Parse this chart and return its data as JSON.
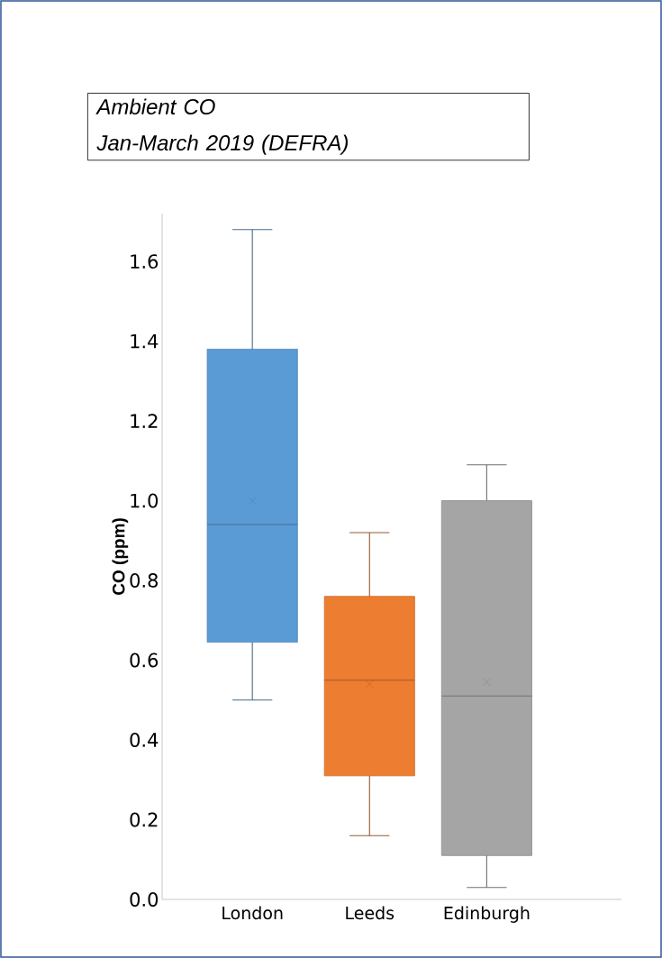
{
  "chart_data": {
    "type": "box",
    "title": "Ambient CO",
    "subtitle": "Jan-March 2019 (DEFRA)",
    "ylabel": "CO (ppm)",
    "categories": [
      "London",
      "Leeds",
      "Edinburgh"
    ],
    "colors": [
      "#5b9bd5",
      "#ed7d31",
      "#a5a5a5"
    ],
    "boxes": [
      {
        "low": 0.5,
        "q1": 0.645,
        "median": 0.94,
        "q3": 1.38,
        "high": 1.68,
        "mean": 1.0
      },
      {
        "low": 0.16,
        "q1": 0.31,
        "median": 0.55,
        "q3": 0.76,
        "high": 0.92,
        "mean": 0.54
      },
      {
        "low": 0.03,
        "q1": 0.11,
        "median": 0.51,
        "q3": 1.0,
        "high": 1.09,
        "mean": 0.545
      }
    ],
    "ylim": [
      0,
      1.72
    ],
    "yticks": [
      {
        "value": 0,
        "label": "0.0"
      },
      {
        "value": 0.2,
        "label": "0.2"
      },
      {
        "value": 0.4,
        "label": "0.4"
      },
      {
        "value": 0.6,
        "label": "0.6"
      },
      {
        "value": 0.8,
        "label": "0.8"
      },
      {
        "value": 1,
        "label": "1.0"
      },
      {
        "value": 1.2,
        "label": "1.2"
      },
      {
        "value": 1.4,
        "label": "1.4"
      },
      {
        "value": 1.6,
        "label": "1.6"
      }
    ],
    "grid": false
  }
}
